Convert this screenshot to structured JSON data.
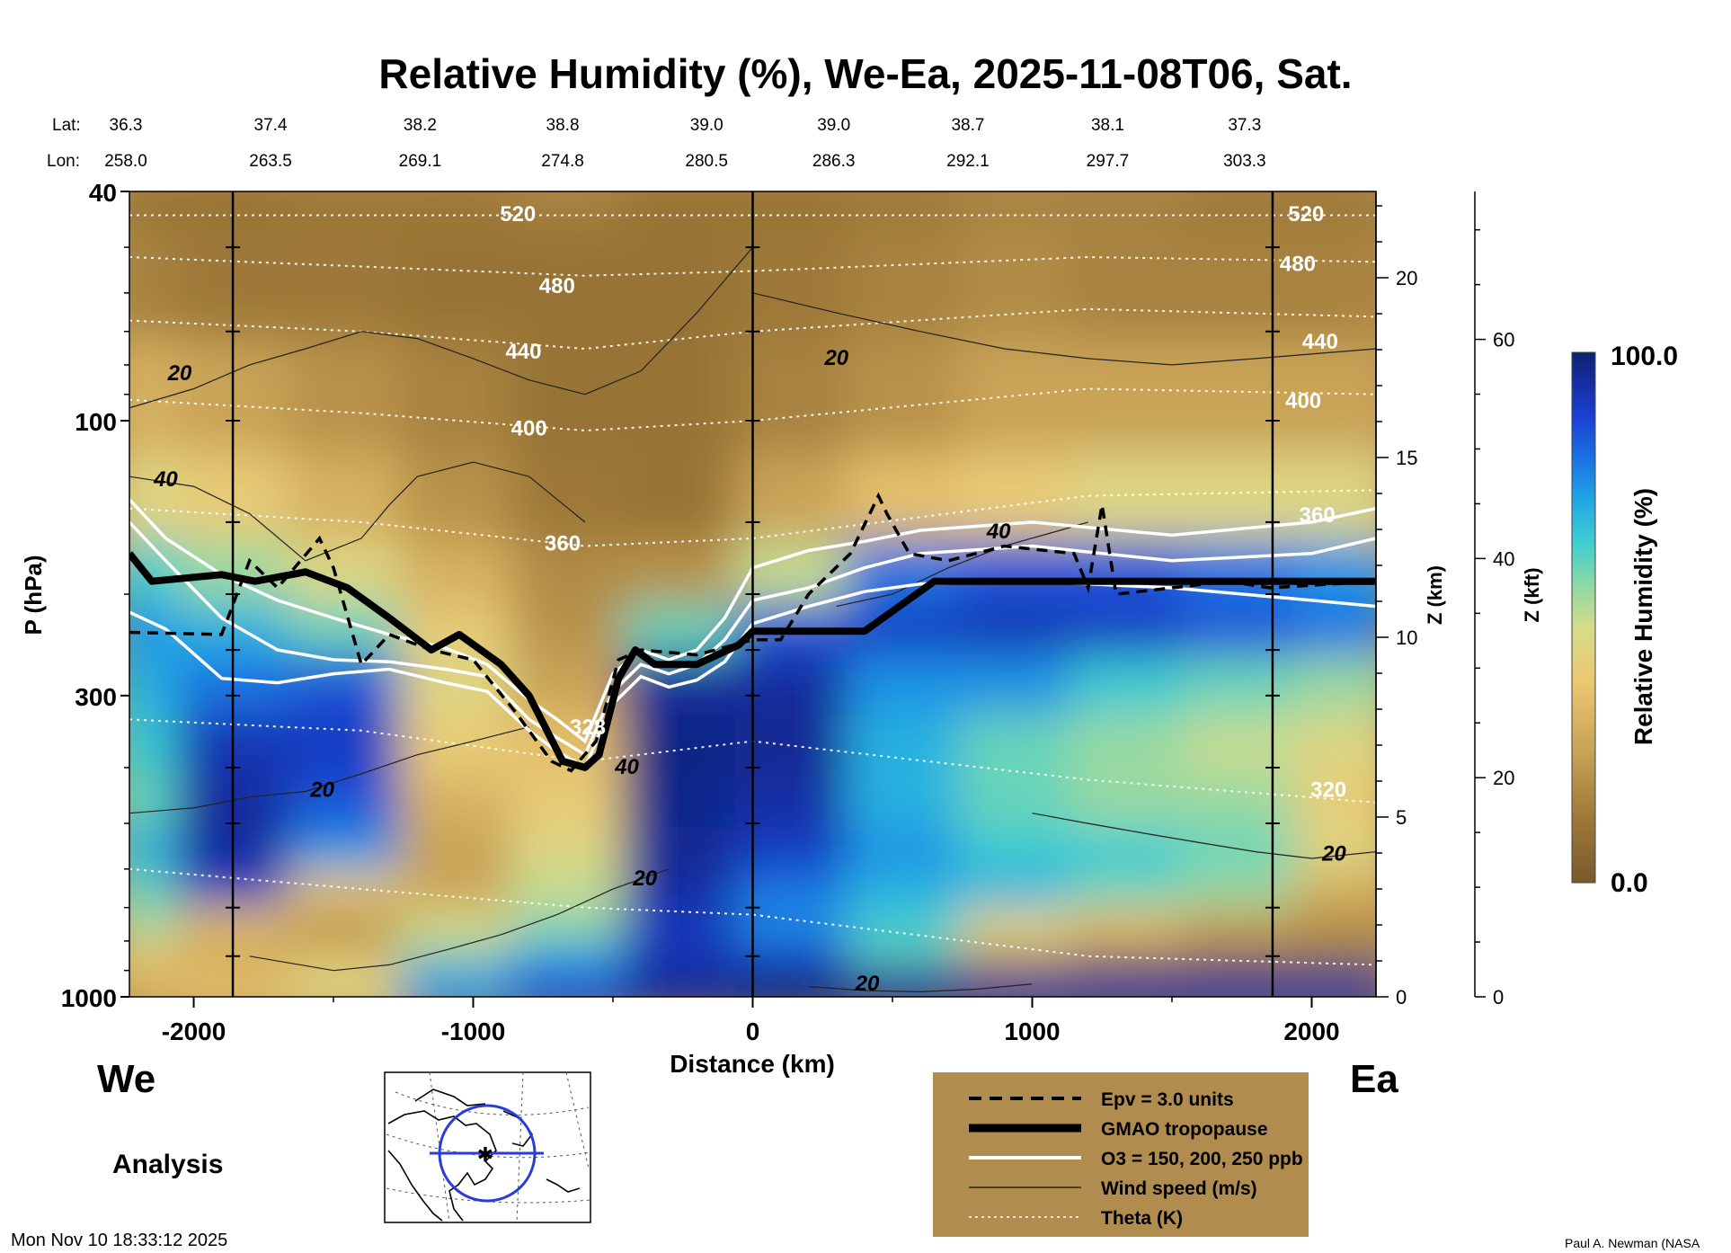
{
  "chart_data": {
    "type": "heatmap",
    "title": "Relative Humidity (%), We-Ea, 2025-11-08T06, Sat.",
    "xlabel": "Distance (km)",
    "ylabel": "P (hPa)",
    "ylabel_right_km": "Z (km)",
    "ylabel_right_kft": "Z (kft)",
    "x_range": [
      -2230,
      2230
    ],
    "y_range_hpa": [
      1000,
      40
    ],
    "y_scale": "log",
    "x_ticks": [
      "-2000",
      "-1000",
      "0",
      "1000",
      "2000"
    ],
    "x_tick_values": [
      -2000,
      -1000,
      0,
      1000,
      2000
    ],
    "y_ticks": [
      "40",
      "100",
      "300",
      "1000"
    ],
    "y_tick_values": [
      40,
      100,
      300,
      1000
    ],
    "z_km_ticks": [
      "20",
      "15",
      "10",
      "5",
      "0"
    ],
    "z_km_values": [
      20,
      15,
      10,
      5,
      0
    ],
    "z_kft_ticks": [
      "60",
      "40",
      "20",
      "0"
    ],
    "z_kft_values": [
      60,
      40,
      20,
      0
    ],
    "lat_label": "Lat:",
    "lon_label": "Lon:",
    "lat": [
      "36.3",
      "37.4",
      "38.2",
      "38.8",
      "39.0",
      "39.0",
      "38.7",
      "38.1",
      "37.3"
    ],
    "lon": [
      "258.0",
      "263.5",
      "269.1",
      "274.8",
      "280.5",
      "286.3",
      "292.1",
      "297.7",
      "303.3"
    ],
    "coord_x_km": [
      -2230,
      -1725,
      -1190,
      -680,
      -165,
      290,
      770,
      1270,
      1760
    ],
    "west_label": "We",
    "east_label": "Ea",
    "analysis_label": "Analysis",
    "timestamp": "Mon Nov 10 18:33:12 2025",
    "credit": "Paul A. Newman (NASA",
    "colorbar": {
      "title": "Relative Humidity (%)",
      "max_label": "100.0",
      "min_label": "0.0"
    },
    "legend": {
      "placement": "bottom-center",
      "entries": [
        {
          "style": "dashed",
          "label": "Epv = 3.0 units"
        },
        {
          "style": "thick",
          "label": "GMAO tropopause"
        },
        {
          "style": "white",
          "label": "O3 = 150, 200, 250 ppb"
        },
        {
          "style": "thin",
          "label": "Wind speed (m/s)"
        },
        {
          "style": "dotted",
          "label": "Theta (K)"
        }
      ]
    },
    "theta_labels": [
      {
        "text": "520",
        "x": -840,
        "p": 45
      },
      {
        "text": "480",
        "x": -700,
        "p": 60
      },
      {
        "text": "440",
        "x": -820,
        "p": 78
      },
      {
        "text": "400",
        "x": -800,
        "p": 106
      },
      {
        "text": "360",
        "x": -680,
        "p": 168
      },
      {
        "text": "328",
        "x": -590,
        "p": 350
      },
      {
        "text": "520",
        "x": 1980,
        "p": 45
      },
      {
        "text": "480",
        "x": 1950,
        "p": 55
      },
      {
        "text": "440",
        "x": 2030,
        "p": 75
      },
      {
        "text": "400",
        "x": 1970,
        "p": 95
      },
      {
        "text": "360",
        "x": 2020,
        "p": 150
      },
      {
        "text": "320",
        "x": 2060,
        "p": 450
      }
    ],
    "wind_labels": [
      {
        "text": "20",
        "x": -2050,
        "p": 85
      },
      {
        "text": "40",
        "x": -2100,
        "p": 130
      },
      {
        "text": "20",
        "x": 300,
        "p": 80
      },
      {
        "text": "40",
        "x": 880,
        "p": 160
      },
      {
        "text": "20",
        "x": -1540,
        "p": 450
      },
      {
        "text": "40",
        "x": -450,
        "p": 410
      },
      {
        "text": "20",
        "x": -385,
        "p": 640
      },
      {
        "text": "20",
        "x": 2080,
        "p": 580
      },
      {
        "text": "20",
        "x": 410,
        "p": 975
      }
    ],
    "tropopause": {
      "x": [
        -2230,
        -2150,
        -1900,
        -1780,
        -1600,
        -1450,
        -1300,
        -1150,
        -1050,
        -900,
        -800,
        -680,
        -600,
        -550,
        -480,
        -420,
        -350,
        -200,
        -50,
        0,
        150,
        400,
        650,
        2230
      ],
      "p": [
        170,
        190,
        185,
        190,
        183,
        195,
        220,
        250,
        235,
        265,
        300,
        390,
        400,
        380,
        280,
        250,
        265,
        265,
        245,
        232,
        232,
        232,
        190,
        190
      ]
    },
    "epv": {
      "x": [
        -2230,
        -1900,
        -1800,
        -1700,
        -1550,
        -1500,
        -1400,
        -1300,
        -1150,
        -1000,
        -850,
        -720,
        -650,
        -560,
        -480,
        -400,
        -200,
        0,
        100,
        200,
        350,
        450,
        480,
        560,
        700,
        900,
        1150,
        1200,
        1250,
        1300,
        1500,
        1700,
        1850,
        2230
      ],
      "p": [
        233,
        235,
        175,
        195,
        160,
        180,
        265,
        235,
        250,
        260,
        320,
        390,
        405,
        360,
        260,
        250,
        255,
        240,
        240,
        200,
        170,
        135,
        145,
        170,
        175,
        165,
        170,
        195,
        140,
        200,
        195,
        190,
        195,
        190
      ]
    },
    "o3_lines": [
      {
        "x": [
          -2230,
          -2100,
          -1900,
          -1700,
          -1500,
          -1300,
          -1100,
          -950,
          -800,
          -700,
          -600,
          -500,
          -400,
          -300,
          -200,
          -100,
          0,
          200,
          400,
          600,
          1000,
          1500,
          2000,
          2230
        ],
        "p": [
          137,
          160,
          185,
          205,
          220,
          235,
          248,
          265,
          305,
          330,
          360,
          275,
          250,
          260,
          250,
          220,
          180,
          168,
          162,
          155,
          150,
          158,
          150,
          142
        ]
      },
      {
        "x": [
          -2230,
          -2100,
          -1900,
          -1700,
          -1500,
          -1300,
          -1100,
          -950,
          -800,
          -700,
          -600,
          -500,
          -400,
          -300,
          -200,
          -100,
          0,
          200,
          400,
          600,
          1000,
          1500,
          2000,
          2230
        ],
        "p": [
          150,
          175,
          220,
          250,
          260,
          262,
          270,
          278,
          330,
          355,
          380,
          295,
          265,
          275,
          265,
          240,
          205,
          195,
          180,
          170,
          165,
          175,
          170,
          160
        ]
      },
      {
        "x": [
          -2230,
          -2100,
          -1900,
          -1700,
          -1500,
          -1300,
          -1100,
          -950,
          -800,
          -700,
          -600,
          -500,
          -400,
          -300,
          -200,
          -100,
          0,
          200,
          400,
          600,
          1000,
          1500,
          2000,
          2230
        ],
        "p": [
          215,
          230,
          280,
          285,
          275,
          270,
          285,
          295,
          345,
          375,
          400,
          310,
          278,
          290,
          282,
          262,
          225,
          210,
          198,
          192,
          190,
          195,
          205,
          210
        ]
      }
    ],
    "theta_levels": [
      {
        "k": 520,
        "p": [
          44,
          44,
          44,
          44,
          44,
          44
        ]
      },
      {
        "k": 480,
        "p": [
          52,
          54,
          56,
          55,
          52,
          53
        ]
      },
      {
        "k": 440,
        "p": [
          67,
          70,
          75,
          70,
          64,
          66
        ]
      },
      {
        "k": 400,
        "p": [
          92,
          97,
          104,
          100,
          88,
          90
        ]
      },
      {
        "k": 360,
        "p": [
          142,
          150,
          165,
          160,
          135,
          132
        ]
      },
      {
        "k": 320,
        "p": [
          330,
          345,
          390,
          360,
          420,
          460
        ]
      },
      {
        "k": 300,
        "p": [
          600,
          650,
          700,
          720,
          850,
          880
        ]
      }
    ],
    "wind_contours": [
      {
        "x": [
          -2230,
          -2000,
          -1800,
          -1600,
          -1400,
          -1200,
          -1000,
          -800,
          -600,
          -400,
          -200,
          0
        ],
        "p": [
          95,
          88,
          80,
          75,
          70,
          72,
          78,
          85,
          90,
          82,
          65,
          50
        ]
      },
      {
        "x": [
          0,
          300,
          600,
          900,
          1200,
          1500,
          1800,
          2230
        ],
        "p": [
          60,
          65,
          70,
          75,
          78,
          80,
          78,
          75
        ]
      },
      {
        "x": [
          -2230,
          -2000,
          -1800,
          -1600,
          -1400,
          -1300,
          -1200,
          -1000,
          -800,
          -600
        ],
        "p": [
          125,
          130,
          145,
          175,
          160,
          140,
          125,
          118,
          125,
          150
        ]
      },
      {
        "x": [
          300,
          500,
          700,
          900,
          1100,
          1200
        ],
        "p": [
          210,
          200,
          180,
          165,
          155,
          150
        ]
      },
      {
        "x": [
          -2230,
          -2000,
          -1800,
          -1600,
          -1400,
          -1200,
          -1000,
          -800
        ],
        "p": [
          480,
          470,
          450,
          440,
          410,
          380,
          360,
          340
        ]
      },
      {
        "x": [
          1000,
          1200,
          1400,
          1600,
          1800,
          2000,
          2230
        ],
        "p": [
          480,
          500,
          520,
          540,
          560,
          575,
          560
        ]
      },
      {
        "x": [
          -1800,
          -1500,
          -1300,
          -1100,
          -900,
          -700,
          -500,
          -300
        ],
        "p": [
          850,
          900,
          880,
          830,
          780,
          720,
          650,
          600
        ]
      },
      {
        "x": [
          200,
          400,
          600,
          800,
          1000
        ],
        "p": [
          960,
          975,
          980,
          970,
          950
        ]
      }
    ],
    "rh_field": {
      "x": [
        -2200,
        -1800,
        -1400,
        -1000,
        -600,
        -200,
        200,
        600,
        1000,
        1400,
        1800,
        2200
      ],
      "p": [
        40,
        60,
        100,
        150,
        200,
        250,
        300,
        400,
        500,
        600,
        700,
        800,
        900,
        1000
      ],
      "values": [
        [
          10,
          10,
          12,
          12,
          15,
          10,
          10,
          12,
          15,
          15,
          12,
          12
        ],
        [
          15,
          12,
          12,
          10,
          10,
          10,
          12,
          15,
          18,
          15,
          15,
          15
        ],
        [
          30,
          25,
          20,
          15,
          10,
          10,
          15,
          20,
          25,
          25,
          25,
          25
        ],
        [
          45,
          40,
          30,
          20,
          12,
          10,
          25,
          35,
          40,
          45,
          45,
          45
        ],
        [
          65,
          55,
          45,
          30,
          18,
          20,
          50,
          80,
          85,
          85,
          80,
          75
        ],
        [
          75,
          70,
          60,
          40,
          20,
          60,
          85,
          90,
          92,
          90,
          85,
          80
        ],
        [
          70,
          80,
          85,
          45,
          25,
          95,
          95,
          75,
          75,
          65,
          60,
          55
        ],
        [
          65,
          92,
          90,
          40,
          35,
          98,
          96,
          70,
          60,
          55,
          50,
          45
        ],
        [
          60,
          95,
          85,
          30,
          40,
          97,
          94,
          70,
          60,
          55,
          55,
          40
        ],
        [
          70,
          95,
          75,
          25,
          45,
          96,
          90,
          75,
          65,
          65,
          60,
          45
        ],
        [
          60,
          90,
          40,
          25,
          50,
          95,
          80,
          70,
          70,
          60,
          55,
          30
        ],
        [
          55,
          35,
          20,
          45,
          55,
          90,
          75,
          65,
          45,
          35,
          25,
          20
        ],
        [
          40,
          25,
          30,
          55,
          70,
          92,
          85,
          60,
          30,
          20,
          15,
          15
        ],
        [
          30,
          35,
          45,
          75,
          85,
          95,
          98,
          95,
          95,
          95,
          95,
          95
        ]
      ]
    }
  }
}
